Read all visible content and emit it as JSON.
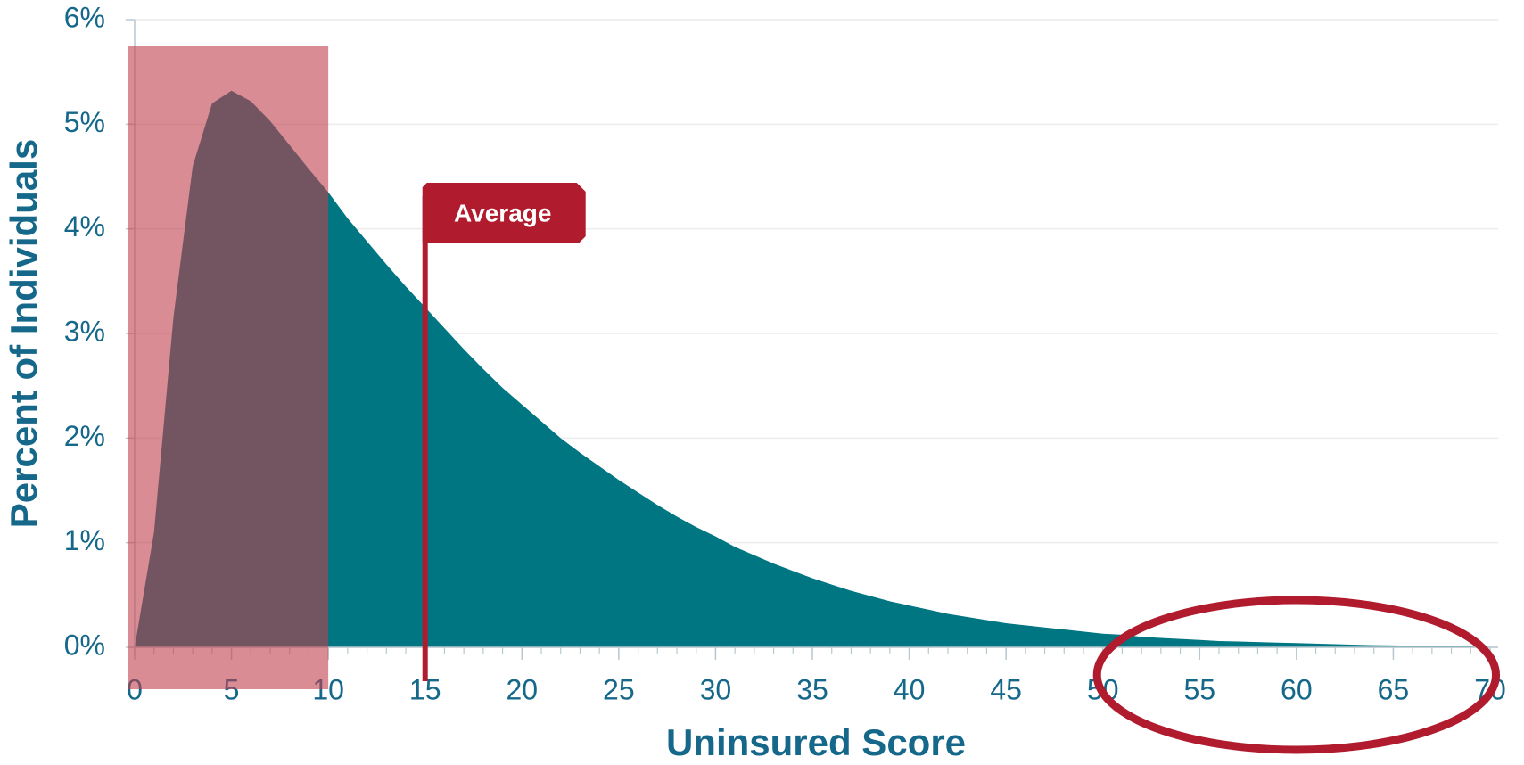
{
  "chart_data": {
    "type": "area",
    "x_label": "Uninsured Score",
    "y_label": "Percent of Individuals",
    "x": [
      0,
      1,
      2,
      3,
      4,
      5,
      6,
      7,
      8,
      9,
      10,
      11,
      12,
      13,
      14,
      15,
      16,
      17,
      18,
      19,
      20,
      21,
      22,
      23,
      24,
      25,
      26,
      27,
      28,
      29,
      30,
      31,
      32,
      33,
      34,
      35,
      36,
      37,
      38,
      39,
      40,
      41,
      42,
      43,
      44,
      45,
      46,
      47,
      48,
      49,
      50,
      51,
      52,
      53,
      54,
      55,
      56,
      57,
      58,
      59,
      60,
      61,
      62,
      63,
      64,
      65,
      66,
      67,
      68,
      69,
      70
    ],
    "series": [
      {
        "color": "#007682",
        "values": [
          0,
          1.1,
          3.15,
          4.6,
          5.2,
          5.32,
          5.22,
          5.03,
          4.8,
          4.57,
          4.35,
          4.1,
          3.88,
          3.66,
          3.45,
          3.25,
          3.05,
          2.85,
          2.66,
          2.48,
          2.32,
          2.16,
          2.0,
          1.86,
          1.73,
          1.6,
          1.48,
          1.36,
          1.25,
          1.15,
          1.06,
          0.96,
          0.88,
          0.8,
          0.73,
          0.66,
          0.6,
          0.54,
          0.49,
          0.44,
          0.4,
          0.36,
          0.32,
          0.29,
          0.26,
          0.23,
          0.21,
          0.19,
          0.17,
          0.15,
          0.13,
          0.12,
          0.1,
          0.09,
          0.08,
          0.07,
          0.06,
          0.055,
          0.05,
          0.045,
          0.04,
          0.035,
          0.03,
          0.025,
          0.02,
          0.018,
          0.015,
          0.012,
          0.01,
          0.008,
          0.005
        ]
      }
    ],
    "xlim": [
      0,
      70
    ],
    "xticks": [
      0,
      5,
      10,
      15,
      20,
      25,
      30,
      35,
      40,
      45,
      50,
      55,
      60,
      65,
      70
    ],
    "ylim": [
      0,
      6
    ],
    "yticks": [
      {
        "value": 0,
        "label": "0%"
      },
      {
        "value": 1,
        "label": "1%"
      },
      {
        "value": 2,
        "label": "2%"
      },
      {
        "value": 3,
        "label": "3%"
      },
      {
        "value": 4,
        "label": "4%"
      },
      {
        "value": 5,
        "label": "5%"
      },
      {
        "value": 6,
        "label": "6%"
      }
    ],
    "grid": true,
    "highlight": {
      "x": [
        0,
        10
      ],
      "color": "#c0404c"
    },
    "annotations": [
      {
        "text": "Average",
        "x": 15,
        "color": "#b01c2e"
      }
    ],
    "circled_range": {
      "x": [
        50,
        70
      ],
      "color": "#b01c2e"
    }
  }
}
